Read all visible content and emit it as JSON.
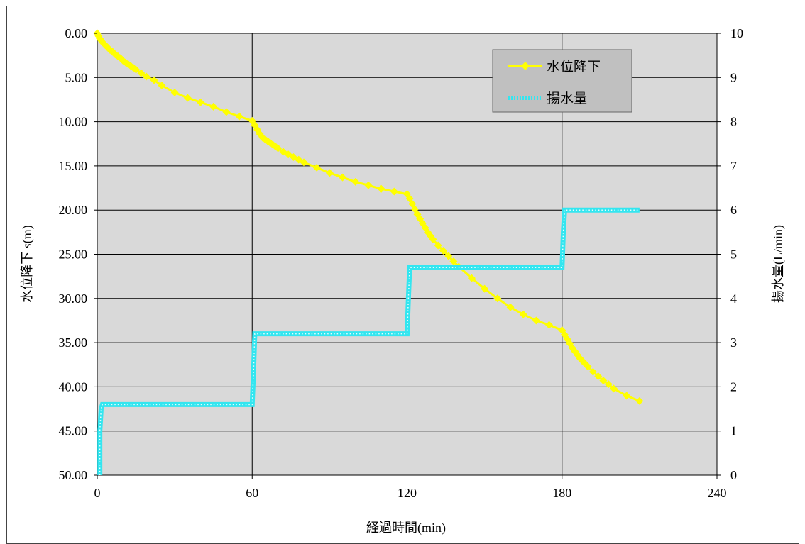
{
  "chart_data": {
    "type": "line",
    "x_axis": {
      "label": "経過時間(min)",
      "range": [
        0,
        240
      ],
      "ticks": [
        0,
        60,
        120,
        180,
        240
      ],
      "tick_labels": [
        "0",
        "60",
        "120",
        "180",
        "240"
      ]
    },
    "y_axis_left": {
      "label_prefix": "水位降下 ",
      "label_var": "s",
      "label_suffix": "(m)",
      "range": [
        0,
        50
      ],
      "inverted": true,
      "ticks": [
        0,
        5,
        10,
        15,
        20,
        25,
        30,
        35,
        40,
        45,
        50
      ],
      "tick_labels": [
        "0.00",
        "5.00",
        "10.00",
        "15.00",
        "20.00",
        "25.00",
        "30.00",
        "35.00",
        "40.00",
        "45.00",
        "50.00"
      ]
    },
    "y_axis_right": {
      "label": "揚水量(L/min)",
      "range": [
        0,
        10
      ],
      "ticks": [
        0,
        1,
        2,
        3,
        4,
        5,
        6,
        7,
        8,
        9,
        10
      ],
      "tick_labels": [
        "0",
        "1",
        "2",
        "3",
        "4",
        "5",
        "6",
        "7",
        "8",
        "9",
        "10"
      ]
    },
    "grid": true,
    "plot_background": "#d9d9d9",
    "legend": {
      "placement": "top-right",
      "background": "#c0c0c0",
      "entries": [
        "水位降下",
        "揚水量"
      ]
    },
    "series": [
      {
        "name": "水位降下",
        "axis": "left",
        "color": "#ffff00",
        "marker": "diamond",
        "points": [
          [
            0,
            0
          ],
          [
            0.5,
            0.3
          ],
          [
            1,
            0.6
          ],
          [
            1.5,
            0.8
          ],
          [
            2,
            1.0
          ],
          [
            3,
            1.3
          ],
          [
            4,
            1.6
          ],
          [
            5,
            1.9
          ],
          [
            6,
            2.1
          ],
          [
            7,
            2.4
          ],
          [
            8,
            2.6
          ],
          [
            9,
            2.8
          ],
          [
            10,
            3.1
          ],
          [
            11,
            3.3
          ],
          [
            12,
            3.5
          ],
          [
            13,
            3.7
          ],
          [
            14,
            3.9
          ],
          [
            15,
            4.1
          ],
          [
            17,
            4.5
          ],
          [
            19,
            4.9
          ],
          [
            22,
            5.3
          ],
          [
            25,
            5.9
          ],
          [
            30,
            6.7
          ],
          [
            35,
            7.3
          ],
          [
            40,
            7.8
          ],
          [
            45,
            8.3
          ],
          [
            50,
            8.9
          ],
          [
            55,
            9.4
          ],
          [
            60,
            9.9
          ],
          [
            61,
            10.4
          ],
          [
            62,
            10.9
          ],
          [
            63,
            11.4
          ],
          [
            64,
            11.8
          ],
          [
            65,
            12.0
          ],
          [
            66,
            12.2
          ],
          [
            67,
            12.4
          ],
          [
            68,
            12.6
          ],
          [
            69,
            12.8
          ],
          [
            70,
            13.0
          ],
          [
            72,
            13.4
          ],
          [
            74,
            13.7
          ],
          [
            76,
            14.0
          ],
          [
            78,
            14.3
          ],
          [
            80,
            14.6
          ],
          [
            85,
            15.2
          ],
          [
            90,
            15.8
          ],
          [
            95,
            16.3
          ],
          [
            100,
            16.8
          ],
          [
            105,
            17.2
          ],
          [
            110,
            17.6
          ],
          [
            115,
            17.9
          ],
          [
            120,
            18.2
          ],
          [
            121,
            18.7
          ],
          [
            122,
            19.3
          ],
          [
            123,
            19.9
          ],
          [
            124,
            20.5
          ],
          [
            125,
            21.0
          ],
          [
            126,
            21.5
          ],
          [
            127,
            22.0
          ],
          [
            128,
            22.5
          ],
          [
            129,
            22.9
          ],
          [
            130,
            23.3
          ],
          [
            132,
            24.0
          ],
          [
            134,
            24.6
          ],
          [
            136,
            25.2
          ],
          [
            138,
            25.8
          ],
          [
            140,
            26.4
          ],
          [
            145,
            27.7
          ],
          [
            150,
            28.9
          ],
          [
            155,
            30.0
          ],
          [
            160,
            31.0
          ],
          [
            165,
            31.8
          ],
          [
            170,
            32.5
          ],
          [
            175,
            33.0
          ],
          [
            180,
            33.6
          ],
          [
            181,
            34.1
          ],
          [
            182,
            34.6
          ],
          [
            183,
            35.1
          ],
          [
            184,
            35.6
          ],
          [
            185,
            36.0
          ],
          [
            186,
            36.4
          ],
          [
            187,
            36.8
          ],
          [
            188,
            37.1
          ],
          [
            189,
            37.4
          ],
          [
            190,
            37.7
          ],
          [
            192,
            38.3
          ],
          [
            194,
            38.8
          ],
          [
            196,
            39.3
          ],
          [
            198,
            39.7
          ],
          [
            200,
            40.2
          ],
          [
            205,
            41.0
          ],
          [
            210,
            41.6
          ]
        ]
      },
      {
        "name": "揚水量",
        "axis": "right",
        "color": "#33e6f0",
        "marker": "dotted-thick",
        "points": [
          [
            1,
            0
          ],
          [
            1,
            1.0
          ],
          [
            1.5,
            1.5
          ],
          [
            2,
            1.6
          ],
          [
            60,
            1.6
          ],
          [
            60.5,
            2.3
          ],
          [
            61,
            3.2
          ],
          [
            120,
            3.2
          ],
          [
            120.5,
            4.0
          ],
          [
            121,
            4.7
          ],
          [
            180,
            4.7
          ],
          [
            180.5,
            5.5
          ],
          [
            181,
            6.0
          ],
          [
            210,
            6.0
          ]
        ]
      }
    ]
  }
}
